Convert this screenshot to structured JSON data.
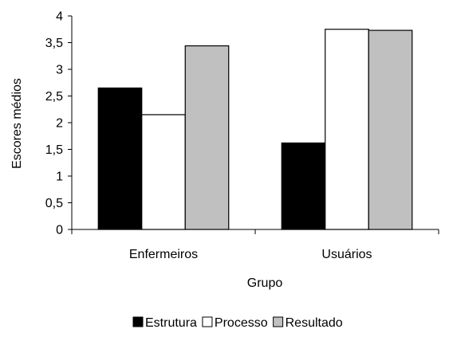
{
  "chart_data": {
    "type": "bar",
    "title": "",
    "xlabel": "Grupo",
    "ylabel": "Escores médios",
    "ylim": [
      0,
      4
    ],
    "yticks": [
      0,
      0.5,
      1,
      1.5,
      2,
      2.5,
      3,
      3.5,
      4
    ],
    "ytick_labels": [
      "0",
      "0,5",
      "1",
      "1,5",
      "2",
      "2,5",
      "3",
      "3,5",
      "4"
    ],
    "categories": [
      "Enfermeiros",
      "Usuários"
    ],
    "series": [
      {
        "name": "Estrutura",
        "values": [
          2.65,
          1.62
        ],
        "color": "#000000"
      },
      {
        "name": "Processo",
        "values": [
          2.15,
          3.75
        ],
        "color": "#ffffff"
      },
      {
        "name": "Resultado",
        "values": [
          3.44,
          3.73
        ],
        "color": "#c0c0c0"
      }
    ],
    "grid": false,
    "legend_position": "bottom"
  }
}
